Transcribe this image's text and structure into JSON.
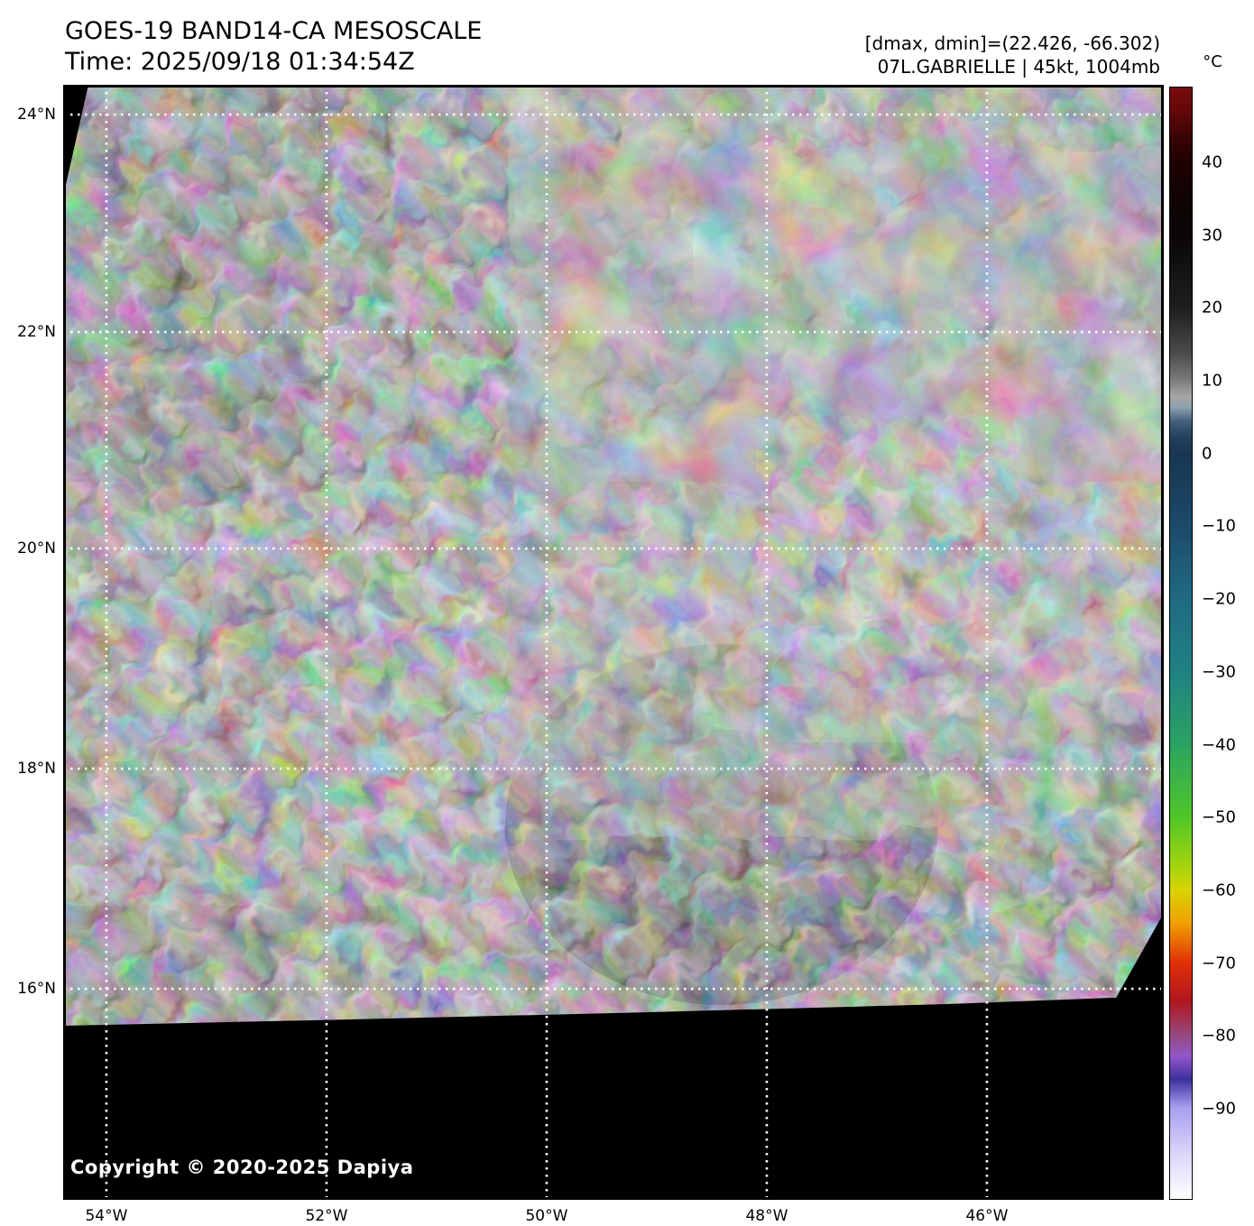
{
  "header": {
    "title": "GOES-19 BAND14-CA MESOSCALE",
    "time_line": "Time: 2025/09/18 01:34:54Z",
    "dmax_dmin": "[dmax, dmin]=(22.426, -66.302)",
    "storm_line": "07L.GABRIELLE | 45kt, 1004mb"
  },
  "map": {
    "copyright": "Copyright © 2020-2025 Dapiya",
    "lat_ticks": [
      {
        "label": "24°N",
        "f": 0.0267
      },
      {
        "label": "22°N",
        "f": 0.2217
      },
      {
        "label": "20°N",
        "f": 0.4159
      },
      {
        "label": "18°N",
        "f": 0.6133
      },
      {
        "label": "16°N",
        "f": 0.8107
      }
    ],
    "lon_ticks": [
      {
        "label": "54°W",
        "f": 0.0393
      },
      {
        "label": "52°W",
        "f": 0.2393
      },
      {
        "label": "50°W",
        "f": 0.4393
      },
      {
        "label": "48°W",
        "f": 0.6393
      },
      {
        "label": "46°W",
        "f": 0.8393
      }
    ]
  },
  "colorbar": {
    "unit": "°C",
    "ticks": [
      {
        "label": "40",
        "f": 0.068
      },
      {
        "label": "30",
        "f": 0.1334
      },
      {
        "label": "20",
        "f": 0.1988
      },
      {
        "label": "10",
        "f": 0.2642
      },
      {
        "label": "0",
        "f": 0.3296
      },
      {
        "label": "−10",
        "f": 0.395
      },
      {
        "label": "−20",
        "f": 0.4604
      },
      {
        "label": "−30",
        "f": 0.5258
      },
      {
        "label": "−40",
        "f": 0.5912
      },
      {
        "label": "−50",
        "f": 0.6566
      },
      {
        "label": "−60",
        "f": 0.722
      },
      {
        "label": "−70",
        "f": 0.7874
      },
      {
        "label": "−80",
        "f": 0.8528
      },
      {
        "label": "−90",
        "f": 0.9182
      }
    ],
    "stops": [
      {
        "f": 0.0,
        "c": "#780c0c"
      },
      {
        "f": 0.02,
        "c": "#640808"
      },
      {
        "f": 0.045,
        "c": "#3a0404"
      },
      {
        "f": 0.068,
        "c": "#1e0202"
      },
      {
        "f": 0.11,
        "c": "#0d0404"
      },
      {
        "f": 0.133,
        "c": "#0a0606"
      },
      {
        "f": 0.199,
        "c": "#1f1f1f"
      },
      {
        "f": 0.24,
        "c": "#4c4c4c"
      },
      {
        "f": 0.264,
        "c": "#7d7d7d"
      },
      {
        "f": 0.278,
        "c": "#a6a6a6"
      },
      {
        "f": 0.288,
        "c": "#8fa0ad"
      },
      {
        "f": 0.3,
        "c": "#45617c"
      },
      {
        "f": 0.315,
        "c": "#20405c"
      },
      {
        "f": 0.33,
        "c": "#173752"
      },
      {
        "f": 0.395,
        "c": "#1c4a6a"
      },
      {
        "f": 0.46,
        "c": "#1f6a82"
      },
      {
        "f": 0.526,
        "c": "#208183"
      },
      {
        "f": 0.591,
        "c": "#2ba361"
      },
      {
        "f": 0.657,
        "c": "#4fc627"
      },
      {
        "f": 0.7,
        "c": "#a3d40c"
      },
      {
        "f": 0.722,
        "c": "#d8d400"
      },
      {
        "f": 0.752,
        "c": "#f0a000"
      },
      {
        "f": 0.787,
        "c": "#e23008"
      },
      {
        "f": 0.822,
        "c": "#b0161e"
      },
      {
        "f": 0.853,
        "c": "#964a80"
      },
      {
        "f": 0.872,
        "c": "#9356cc"
      },
      {
        "f": 0.892,
        "c": "#3d2f9e"
      },
      {
        "f": 0.918,
        "c": "#a89ff0"
      },
      {
        "f": 0.962,
        "c": "#ded9fa"
      },
      {
        "f": 1.0,
        "c": "#ffffff"
      }
    ]
  },
  "palette": {
    "background_dark": "#1a1a1a",
    "ocean_blue": "#16486a",
    "ocean_teal": "#1d7a8c",
    "ocean_cyan": "#2aa6ba",
    "storm_green": "#3cc435",
    "storm_bright_green": "#79de1f",
    "storm_yellow": "#e2d714",
    "storm_orange": "#f29a10",
    "storm_red": "#e02c06",
    "storm_crimson": "#b31114",
    "storm_purple": "#9a5ad0",
    "grid_white": "#ffffff",
    "nodata_black": "#000000"
  }
}
